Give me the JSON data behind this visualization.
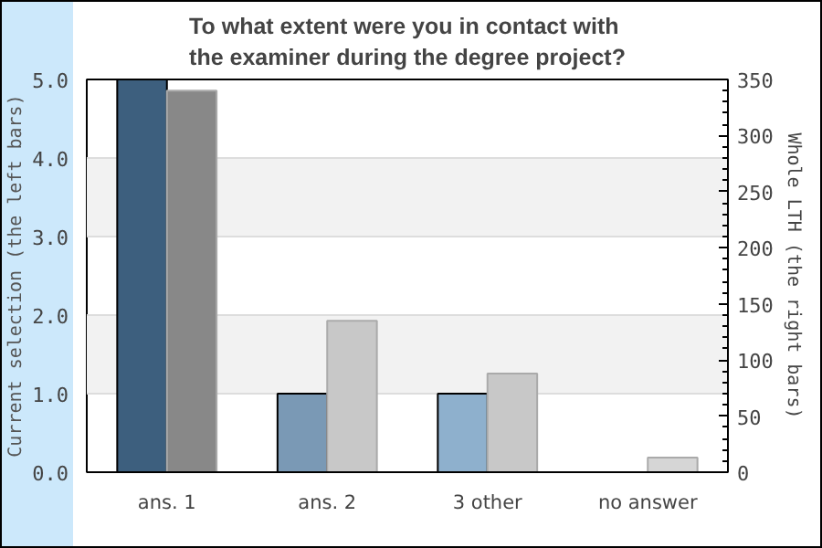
{
  "chart_data": {
    "type": "bar",
    "title": "To what extent were you in contact with\nthe examiner during the degree project?",
    "categories": [
      "ans. 1",
      "ans. 2",
      "3 other",
      "no answer"
    ],
    "ylabel": "Current selection (the left bars)",
    "y2label": "Whole LTH (the right bars)",
    "series": [
      {
        "colors": [
          "#3d5f7e",
          "#7a99b5",
          "#8eb0cd",
          null
        ],
        "values": [
          5,
          1,
          1,
          null
        ]
      },
      {
        "axis": "y2",
        "colors": [
          "#888888",
          "#c8c8c8",
          "#c8c8c8",
          "#d6d6d6"
        ],
        "values": [
          340,
          135,
          88,
          13
        ]
      }
    ],
    "ylim": [
      0,
      5
    ],
    "yticks": [
      {
        "value": 0,
        "label": "0.0"
      },
      {
        "value": 1,
        "label": "1.0"
      },
      {
        "value": 2,
        "label": "2.0"
      },
      {
        "value": 3,
        "label": "3.0"
      },
      {
        "value": 4,
        "label": "4.0"
      },
      {
        "value": 5,
        "label": "5.0"
      }
    ],
    "y2lim": [
      0,
      350
    ],
    "y2ticks": [
      0,
      50,
      100,
      150,
      200,
      250,
      300,
      350
    ],
    "grid": "y"
  }
}
